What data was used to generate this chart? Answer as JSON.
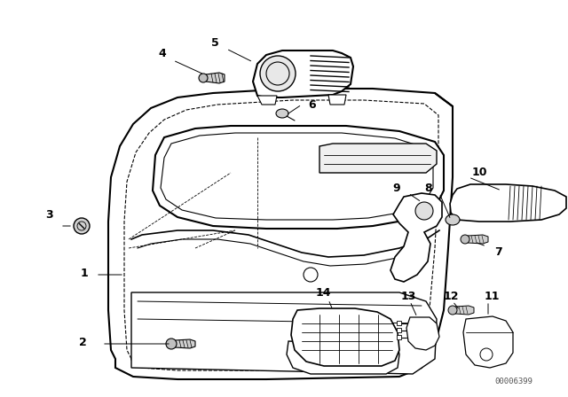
{
  "background_color": "#ffffff",
  "fig_width": 6.4,
  "fig_height": 4.48,
  "dpi": 100,
  "watermark": "00006399",
  "line_color": "#000000",
  "label_fontsize": 9,
  "label_fontweight": "bold"
}
